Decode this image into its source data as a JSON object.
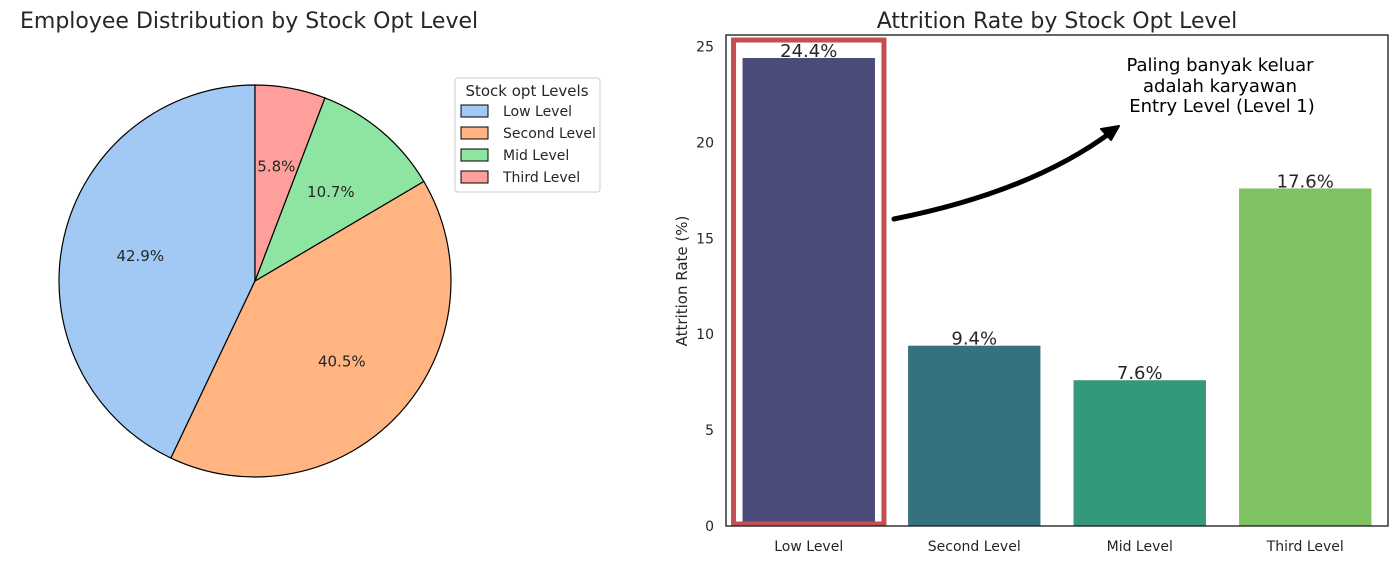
{
  "chart_data": [
    {
      "type": "pie",
      "title": "Employee Distribution by Stock Opt Level",
      "legend": {
        "title": "Stock opt Levels",
        "placement": "upper-right-outside"
      },
      "labels": [
        "Low Level",
        "Second Level",
        "Mid Level",
        "Third Level"
      ],
      "values": [
        42.9,
        40.5,
        10.7,
        5.8
      ],
      "value_labels": [
        "42.9%",
        "40.5%",
        "10.7%",
        "5.8%"
      ],
      "colors": [
        "#a1c9f4",
        "#ffb482",
        "#8de5a1",
        "#ff9f9b"
      ],
      "start_angle_deg": 90,
      "direction": "counterclockwise"
    },
    {
      "type": "bar",
      "title": "Attrition Rate by Stock Opt Level",
      "xlabel": "",
      "ylabel": "Attrition Rate (%)",
      "categories": [
        "Low Level",
        "Second Level",
        "Mid Level",
        "Third Level"
      ],
      "values": [
        24.4,
        9.4,
        7.6,
        17.6
      ],
      "value_labels": [
        "24.4%",
        "9.4%",
        "7.6%",
        "17.6%"
      ],
      "colors": [
        "#4a4a7b",
        "#367180",
        "#34987b",
        "#7fc262"
      ],
      "ylim": [
        0,
        25.6
      ],
      "yticks": [
        0,
        5,
        10,
        15,
        20,
        25
      ],
      "ytick_labels": [
        "0",
        "5",
        "10",
        "15",
        "20",
        "25"
      ],
      "grid": false,
      "highlight": {
        "category": "Low Level",
        "color": "#c44e52"
      },
      "annotation": {
        "lines": [
          "Paling banyak keluar",
          "adalah karyawan",
          "Entry Level (Level 1)"
        ],
        "arrow_from_category": "Low Level"
      }
    }
  ]
}
